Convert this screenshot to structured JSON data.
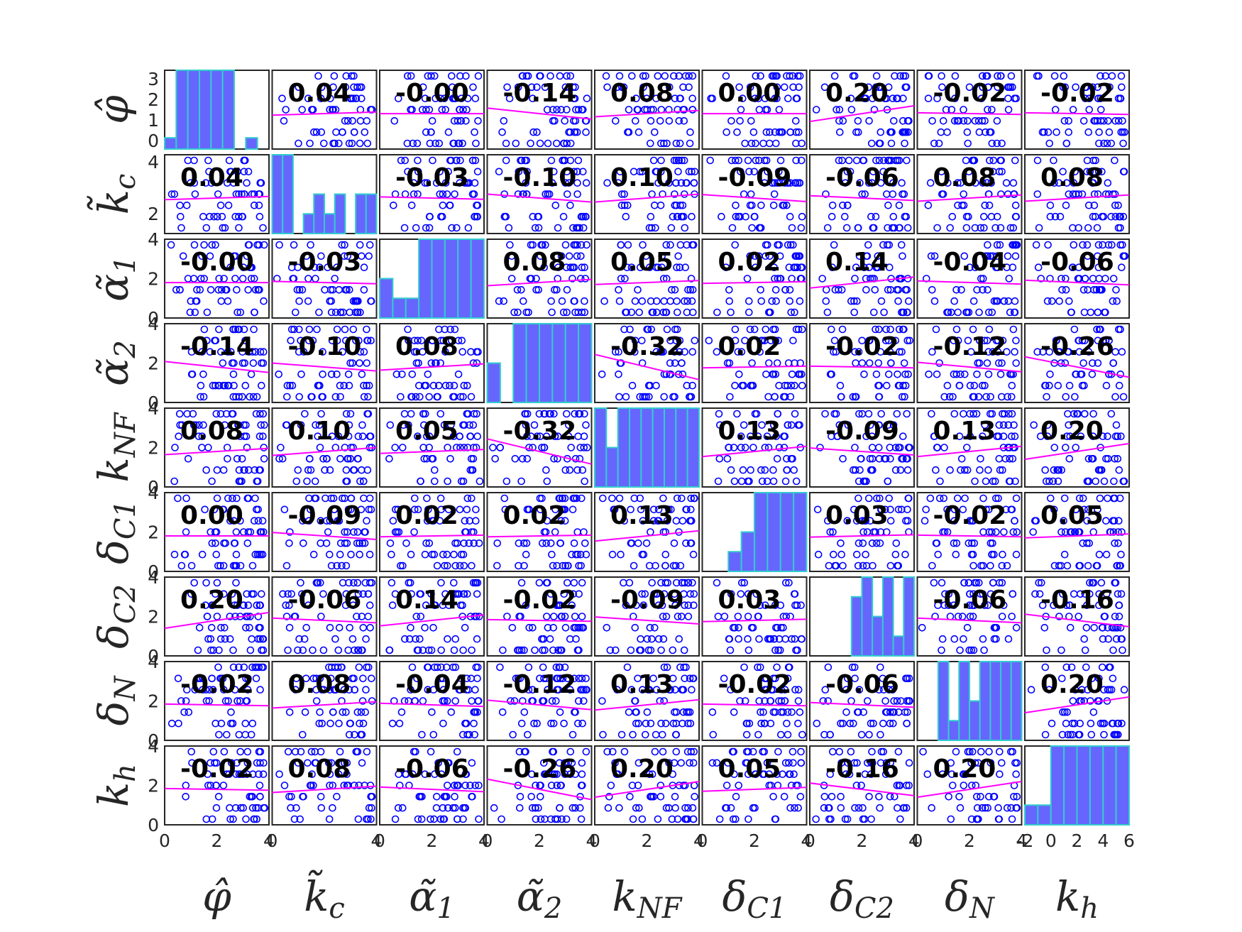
{
  "chart_data": {
    "type": "scatter-matrix",
    "variables": [
      "φ̂",
      "k̃c",
      "α̃1",
      "α̃2",
      "kNF",
      "δC1",
      "δC2",
      "δN",
      "kh"
    ],
    "variable_labels": [
      {
        "base": "φ̂",
        "sub": ""
      },
      {
        "base": "k̃",
        "sub": "c"
      },
      {
        "base": "α̃",
        "sub": "1"
      },
      {
        "base": "α̃",
        "sub": "2"
      },
      {
        "base": "k",
        "sub": "NF"
      },
      {
        "base": "δ",
        "sub": "C1"
      },
      {
        "base": "δ",
        "sub": "C2"
      },
      {
        "base": "δ",
        "sub": "N"
      },
      {
        "base": "k",
        "sub": "h"
      }
    ],
    "correlation_labels": [
      [
        "",
        "0.04",
        "-0.00",
        "-0.14",
        "0.08",
        "0.00",
        "0.20",
        "-0.02",
        "-0.02"
      ],
      [
        "0.04",
        "",
        "-0.03",
        "-0.10",
        "0.10",
        "-0.09",
        "-0.06",
        "0.08",
        "0.08"
      ],
      [
        "-0.00",
        "-0.03",
        "",
        "0.08",
        "0.05",
        "0.02",
        "0.14",
        "-0.04",
        "-0.06"
      ],
      [
        "-0.14",
        "-0.10",
        "0.08",
        "",
        "-0.32",
        "0.02",
        "-0.02",
        "-0.12",
        "-0.26"
      ],
      [
        "0.08",
        "0.10",
        "0.05",
        "-0.32",
        "",
        "0.13",
        "-0.09",
        "0.13",
        "0.20"
      ],
      [
        "0.00",
        "-0.09",
        "0.02",
        "0.02",
        "0.13",
        "",
        "0.03",
        "-0.02",
        "0.05"
      ],
      [
        "0.20",
        "-0.06",
        "0.14",
        "-0.02",
        "-0.09",
        "0.03",
        "",
        "-0.06",
        "-0.16"
      ],
      [
        "-0.02",
        "0.08",
        "-0.04",
        "-0.12",
        "0.13",
        "-0.02",
        "-0.06",
        "",
        "0.20"
      ],
      [
        "-0.02",
        "0.08",
        "-0.06",
        "-0.26",
        "0.20",
        "0.05",
        "-0.16",
        "0.20",
        ""
      ]
    ],
    "y_tick_labels": [
      [
        "0",
        "1",
        "2",
        "3"
      ],
      [
        "2",
        "4"
      ],
      [
        "0",
        "2",
        "4"
      ],
      [
        "0",
        "2",
        "4"
      ],
      [
        "0",
        "2",
        "4"
      ],
      [
        "0",
        "2",
        "4"
      ],
      [
        "0",
        "2",
        "4"
      ],
      [
        "0",
        "2",
        "4"
      ],
      [
        "0",
        "2",
        "4"
      ]
    ],
    "x_tick_labels": [
      [
        "0",
        "2",
        "4"
      ],
      [
        "0",
        "",
        "4"
      ],
      [
        "0",
        "2",
        "4"
      ],
      [
        "0",
        "2",
        "4"
      ],
      [
        "0",
        "2",
        "4"
      ],
      [
        "0",
        "2",
        "4"
      ],
      [
        "0",
        "2",
        "4"
      ],
      [
        "0",
        "2",
        "4"
      ],
      [
        "-2",
        "0",
        "2",
        "4",
        "6"
      ]
    ],
    "histograms": [
      [
        0.5,
        3.5,
        3.5,
        3.5,
        3.5,
        3.5,
        0,
        0.5,
        0
      ],
      [
        4,
        4,
        0,
        1,
        2,
        1,
        2,
        0,
        2,
        2
      ],
      [
        2,
        1,
        1,
        4,
        4,
        4,
        4,
        4
      ],
      [
        2,
        0,
        4,
        4,
        4,
        4,
        4,
        4
      ],
      [
        4,
        2,
        4,
        4,
        4,
        4,
        4,
        4,
        4
      ],
      [
        0,
        0,
        1,
        2,
        4,
        4,
        4,
        4
      ],
      [
        0,
        0,
        0,
        0,
        3,
        4,
        2,
        4,
        1,
        4
      ],
      [
        0,
        0,
        4,
        1,
        4,
        2,
        4,
        4,
        4,
        4
      ],
      [
        1,
        1,
        4,
        4,
        4,
        4,
        4,
        4
      ]
    ],
    "histogram_ymax": [
      3.5,
      4,
      4,
      4,
      4,
      4,
      4,
      4,
      4
    ],
    "grid": false,
    "colors": {
      "marker": "#0000ff",
      "fit_line": "#ff00ff",
      "bar_fill": "#6666ff",
      "bar_edge": "#33cccc",
      "axes": "#262626"
    }
  }
}
